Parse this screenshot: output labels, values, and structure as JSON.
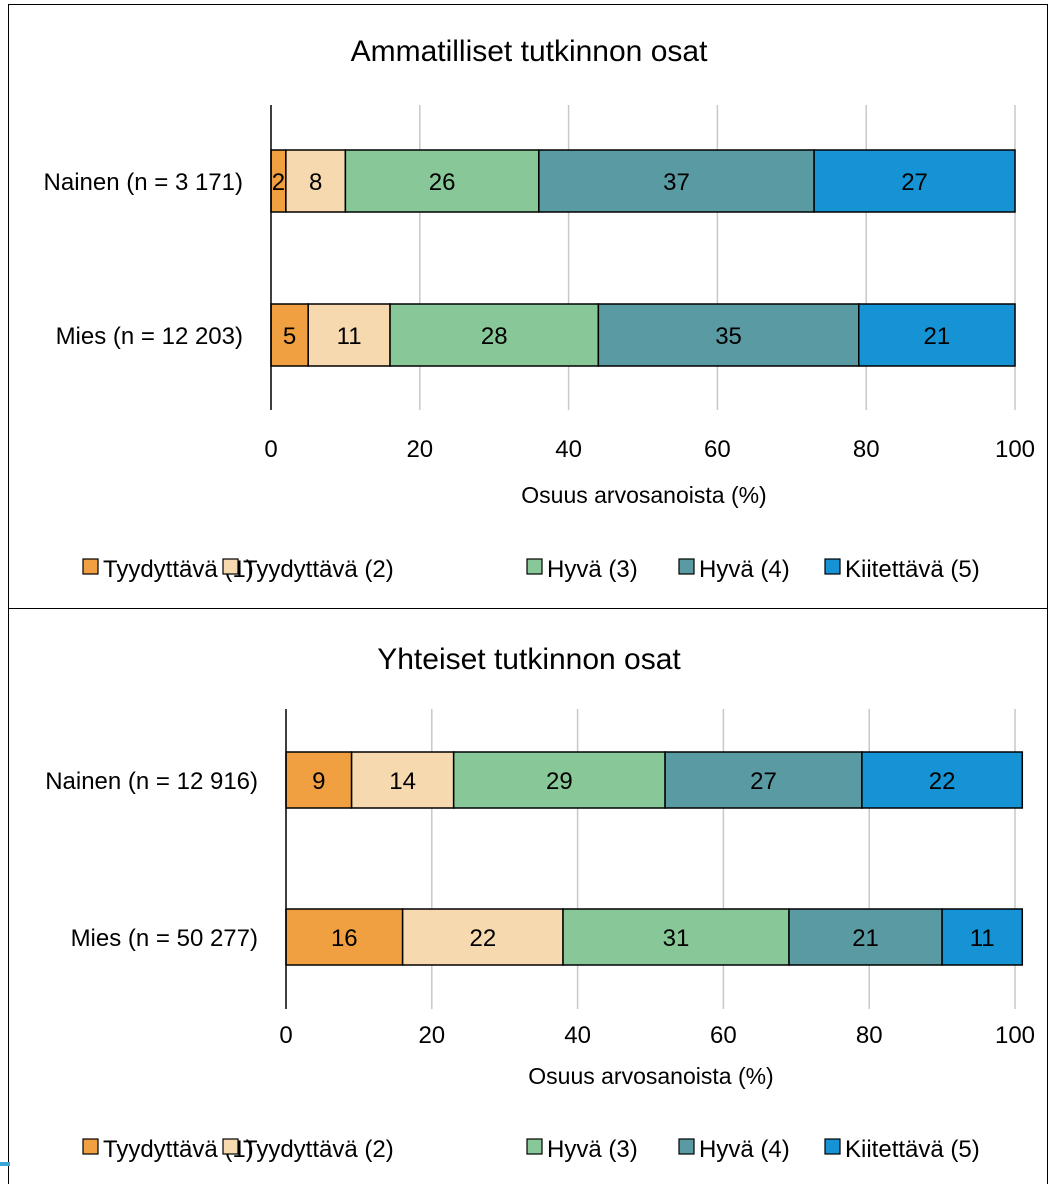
{
  "chart_data": [
    {
      "type": "bar",
      "orientation": "horizontal",
      "stacked": true,
      "title": "Ammatilliset tutkinnon osat",
      "xlabel": "Osuus arvosanoista (%)",
      "ylabel": "",
      "xlim": [
        0,
        100
      ],
      "xticks": [
        "0",
        "20",
        "40",
        "60",
        "80",
        "100"
      ],
      "grid": true,
      "legend_position": "bottom",
      "categories": [
        "Nainen (n = 3 171)",
        "Mies (n = 12 203)"
      ],
      "series": [
        {
          "name": "Tyydyttävä (1)",
          "color": "#f0a040",
          "values": [
            2,
            5
          ]
        },
        {
          "name": "Tyydyttävä (2)",
          "color": "#f7d9b0",
          "values": [
            8,
            11
          ]
        },
        {
          "name": "Hyvä (3)",
          "color": "#88c898",
          "values": [
            26,
            28
          ]
        },
        {
          "name": "Hyvä (4)",
          "color": "#5a9aa2",
          "values": [
            37,
            35
          ]
        },
        {
          "name": "Kiitettävä (5)",
          "color": "#1593d4",
          "values": [
            27,
            21
          ]
        }
      ]
    },
    {
      "type": "bar",
      "orientation": "horizontal",
      "stacked": true,
      "title": "Yhteiset tutkinnon osat",
      "xlabel": "Osuus arvosanoista (%)",
      "ylabel": "",
      "xlim": [
        0,
        100
      ],
      "xticks": [
        "0",
        "20",
        "40",
        "60",
        "80",
        "100"
      ],
      "grid": true,
      "legend_position": "bottom",
      "categories": [
        "Nainen (n = 12 916)",
        "Mies (n = 50 277)"
      ],
      "series": [
        {
          "name": "Tyydyttävä (1)",
          "color": "#f0a040",
          "values": [
            9,
            16
          ]
        },
        {
          "name": "Tyydyttävä (2)",
          "color": "#f7d9b0",
          "values": [
            14,
            22
          ]
        },
        {
          "name": "Hyvä (3)",
          "color": "#88c898",
          "values": [
            29,
            31
          ]
        },
        {
          "name": "Hyvä (4)",
          "color": "#5a9aa2",
          "values": [
            27,
            21
          ]
        },
        {
          "name": "Kiitettävä (5)",
          "color": "#1593d4",
          "values": [
            22,
            11
          ]
        }
      ]
    }
  ]
}
